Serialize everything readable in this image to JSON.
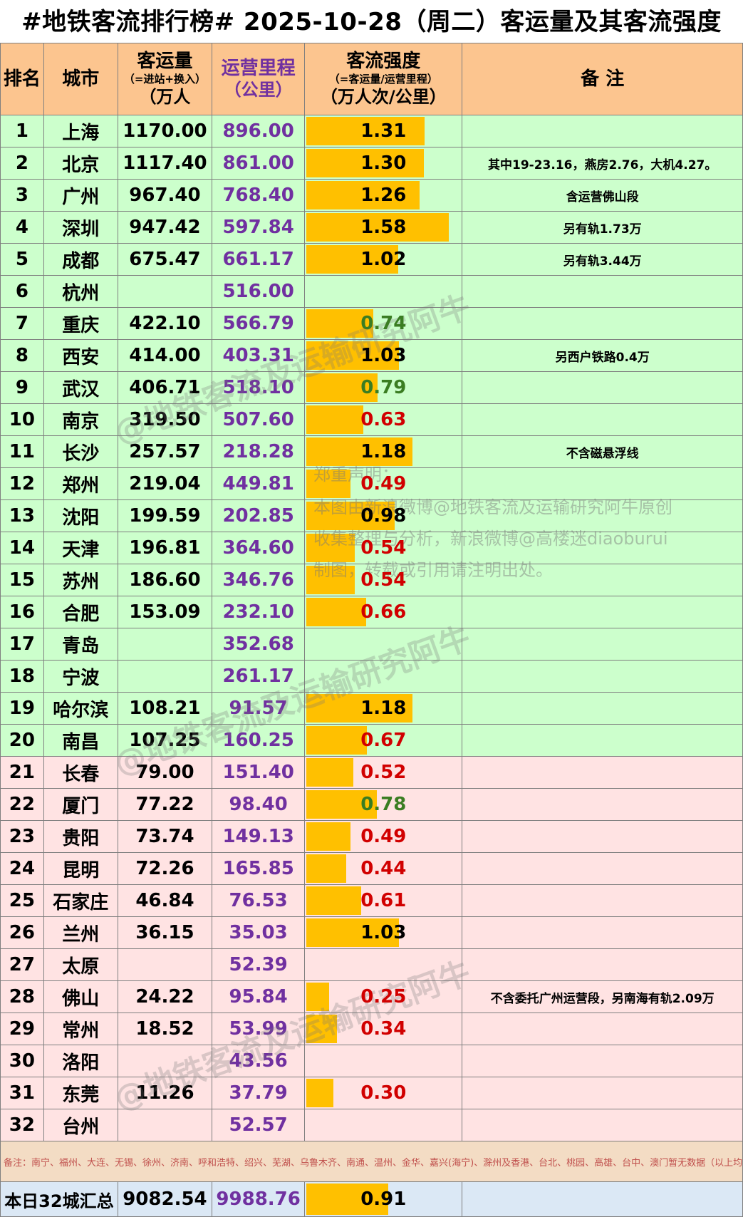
{
  "title": "#地铁客流排行榜# 2025-10-28（周二）客运量及其客流强度",
  "headers": {
    "rank": "排名",
    "city": "城市",
    "pass_main": "客运量",
    "pass_sub": "（=进站+换入）",
    "pass_unit": "（万人",
    "mil_main": "运营里程",
    "mil_unit": "（公里）",
    "int_main": "客流强度",
    "int_sub": "（=客运量/运营里程）",
    "int_unit": "（万人次/公里）",
    "note": "备 注"
  },
  "colors": {
    "header_bg": "#fcc58f",
    "green_rows": "#ccffcc",
    "pink_rows": "#ffe3e3",
    "bar": "#ffc000",
    "mileage_text": "#7030a0"
  },
  "rows": [
    {
      "rank": "1",
      "city": "上海",
      "pass": "1170.00",
      "mil": "896.00",
      "int": "1.31",
      "note": "",
      "color": "black",
      "zone": "green"
    },
    {
      "rank": "2",
      "city": "北京",
      "pass": "1117.40",
      "mil": "861.00",
      "int": "1.30",
      "note": "其中19-23.16，燕房2.76，大机4.27。",
      "color": "black",
      "zone": "green"
    },
    {
      "rank": "3",
      "city": "广州",
      "pass": "967.40",
      "mil": "768.40",
      "int": "1.26",
      "note": "含运营佛山段",
      "color": "black",
      "zone": "green"
    },
    {
      "rank": "4",
      "city": "深圳",
      "pass": "947.42",
      "mil": "597.84",
      "int": "1.58",
      "note": "另有轨1.73万",
      "color": "black",
      "zone": "green"
    },
    {
      "rank": "5",
      "city": "成都",
      "pass": "675.47",
      "mil": "661.17",
      "int": "1.02",
      "note": "另有轨3.44万",
      "color": "black",
      "zone": "green"
    },
    {
      "rank": "6",
      "city": "杭州",
      "pass": "",
      "mil": "516.00",
      "int": "",
      "note": "",
      "color": "black",
      "zone": "green"
    },
    {
      "rank": "7",
      "city": "重庆",
      "pass": "422.10",
      "mil": "566.79",
      "int": "0.74",
      "note": "",
      "color": "green",
      "zone": "green"
    },
    {
      "rank": "8",
      "city": "西安",
      "pass": "414.00",
      "mil": "403.31",
      "int": "1.03",
      "note": "另西户铁路0.4万",
      "color": "black",
      "zone": "green"
    },
    {
      "rank": "9",
      "city": "武汉",
      "pass": "406.71",
      "mil": "518.10",
      "int": "0.79",
      "note": "",
      "color": "green",
      "zone": "green"
    },
    {
      "rank": "10",
      "city": "南京",
      "pass": "319.50",
      "mil": "507.60",
      "int": "0.63",
      "note": "",
      "color": "red",
      "zone": "green"
    },
    {
      "rank": "11",
      "city": "长沙",
      "pass": "257.57",
      "mil": "218.28",
      "int": "1.18",
      "note": "不含磁悬浮线",
      "color": "black",
      "zone": "green"
    },
    {
      "rank": "12",
      "city": "郑州",
      "pass": "219.04",
      "mil": "449.81",
      "int": "0.49",
      "note": "",
      "color": "red",
      "zone": "green"
    },
    {
      "rank": "13",
      "city": "沈阳",
      "pass": "199.59",
      "mil": "202.85",
      "int": "0.98",
      "note": "",
      "color": "black",
      "zone": "green"
    },
    {
      "rank": "14",
      "city": "天津",
      "pass": "196.81",
      "mil": "364.60",
      "int": "0.54",
      "note": "",
      "color": "red",
      "zone": "green"
    },
    {
      "rank": "15",
      "city": "苏州",
      "pass": "186.60",
      "mil": "346.76",
      "int": "0.54",
      "note": "",
      "color": "red",
      "zone": "green"
    },
    {
      "rank": "16",
      "city": "合肥",
      "pass": "153.09",
      "mil": "232.10",
      "int": "0.66",
      "note": "",
      "color": "red",
      "zone": "green"
    },
    {
      "rank": "17",
      "city": "青岛",
      "pass": "",
      "mil": "352.68",
      "int": "",
      "note": "",
      "color": "black",
      "zone": "green"
    },
    {
      "rank": "18",
      "city": "宁波",
      "pass": "",
      "mil": "261.17",
      "int": "",
      "note": "",
      "color": "black",
      "zone": "green"
    },
    {
      "rank": "19",
      "city": "哈尔滨",
      "pass": "108.21",
      "mil": "91.57",
      "int": "1.18",
      "note": "",
      "color": "black",
      "zone": "green"
    },
    {
      "rank": "20",
      "city": "南昌",
      "pass": "107.25",
      "mil": "160.25",
      "int": "0.67",
      "note": "",
      "color": "red",
      "zone": "green"
    },
    {
      "rank": "21",
      "city": "长春",
      "pass": "79.00",
      "mil": "151.40",
      "int": "0.52",
      "note": "",
      "color": "red",
      "zone": "pink"
    },
    {
      "rank": "22",
      "city": "厦门",
      "pass": "77.22",
      "mil": "98.40",
      "int": "0.78",
      "note": "",
      "color": "green",
      "zone": "pink"
    },
    {
      "rank": "23",
      "city": "贵阳",
      "pass": "73.74",
      "mil": "149.13",
      "int": "0.49",
      "note": "",
      "color": "red",
      "zone": "pink"
    },
    {
      "rank": "24",
      "city": "昆明",
      "pass": "72.26",
      "mil": "165.85",
      "int": "0.44",
      "note": "",
      "color": "red",
      "zone": "pink"
    },
    {
      "rank": "25",
      "city": "石家庄",
      "pass": "46.84",
      "mil": "76.53",
      "int": "0.61",
      "note": "",
      "color": "red",
      "zone": "pink"
    },
    {
      "rank": "26",
      "city": "兰州",
      "pass": "36.15",
      "mil": "35.03",
      "int": "1.03",
      "note": "",
      "color": "black",
      "zone": "pink"
    },
    {
      "rank": "27",
      "city": "太原",
      "pass": "",
      "mil": "52.39",
      "int": "",
      "note": "",
      "color": "black",
      "zone": "pink"
    },
    {
      "rank": "28",
      "city": "佛山",
      "pass": "24.22",
      "mil": "95.84",
      "int": "0.25",
      "note": "不含委托广州运营段，另南海有轨2.09万",
      "color": "red",
      "zone": "pink"
    },
    {
      "rank": "29",
      "city": "常州",
      "pass": "18.52",
      "mil": "53.99",
      "int": "0.34",
      "note": "",
      "color": "red",
      "zone": "pink"
    },
    {
      "rank": "30",
      "city": "洛阳",
      "pass": "",
      "mil": "43.56",
      "int": "",
      "note": "",
      "color": "black",
      "zone": "pink"
    },
    {
      "rank": "31",
      "city": "东莞",
      "pass": "11.26",
      "mil": "37.79",
      "int": "0.30",
      "note": "",
      "color": "red",
      "zone": "pink"
    },
    {
      "rank": "32",
      "city": "台州",
      "pass": "",
      "mil": "52.57",
      "int": "",
      "note": "",
      "color": "black",
      "zone": "pink"
    }
  ],
  "footnote": "备注：南宁、福州、大连、无锡、徐州、济南、呼和浩特、绍兴、芜湖、乌鲁木齐、南通、温州、金华、嘉兴(海宁)、滁州及香港、台北、桃园、高雄、台中、澳门暂无数据（以上均",
  "summary": {
    "label": "本日32城汇总",
    "pass": "9082.54",
    "mil": "9988.76",
    "int": "0.91",
    "color": "black"
  },
  "watermarks": [
    "@地铁客流及运输研究阿牛",
    "@地铁客流及运输研究阿牛",
    "@地铁客流及运输研究阿牛"
  ],
  "declaration": [
    "郑重声明：",
    "本图由新浪微博@地铁客流及运输研究阿牛原创",
    "收集整理与分析，新浪微博@高楼迷diaoburui",
    "制图，转载或引用请注明出处。"
  ]
}
